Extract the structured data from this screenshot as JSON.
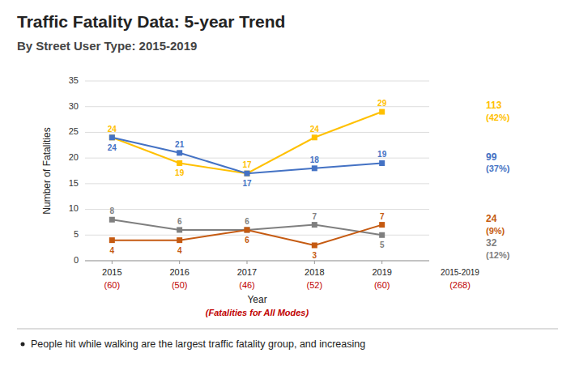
{
  "chart_data": {
    "type": "line",
    "title": "Traffic Fatality Data: 5-year Trend",
    "subtitle": "By Street User Type: 2015-2019",
    "x_label": "Year",
    "y_label": "Number of Fatalities",
    "x": [
      2015,
      2016,
      2017,
      2018,
      2019
    ],
    "xlim": [
      2014.6,
      2019.7
    ],
    "xticks": [
      2015,
      2016,
      2017,
      2018,
      2019
    ],
    "ylim": [
      0,
      35
    ],
    "yticks": [
      0,
      5,
      10,
      15,
      20,
      25,
      30,
      35
    ],
    "grid": true,
    "data_labels": true,
    "marker": "square",
    "series": [
      {
        "color": "#FFC000",
        "values": [
          24,
          19,
          17,
          24,
          29
        ]
      },
      {
        "color": "#4472C4",
        "values": [
          24,
          21,
          17,
          18,
          19
        ]
      },
      {
        "color": "#7F7F7F",
        "values": [
          8,
          6,
          6,
          7,
          5
        ]
      },
      {
        "color": "#C55A11",
        "values": [
          4,
          4,
          6,
          3,
          7
        ]
      }
    ],
    "annotations": [
      {
        "text": "(Fatalities for All Modes)",
        "color": "#C00000"
      },
      {
        "text": "(60)",
        "color": "#C00000"
      },
      {
        "text": "(50)",
        "color": "#C00000"
      },
      {
        "text": "(46)",
        "color": "#C00000"
      },
      {
        "text": "(52)",
        "color": "#C00000"
      },
      {
        "text": "(60)",
        "color": "#C00000"
      },
      {
        "text": "2015-2019"
      },
      {
        "text": "(268)",
        "color": "#C00000"
      },
      {
        "text": "113",
        "color": "#FFC000"
      },
      {
        "text": "(42%)",
        "color": "#FFC000"
      },
      {
        "text": "99",
        "color": "#4472C4"
      },
      {
        "text": "(37%)",
        "color": "#4472C4"
      },
      {
        "text": "24",
        "color": "#C55A11"
      },
      {
        "text": "(9%)",
        "color": "#C55A11"
      },
      {
        "text": "32",
        "color": "#7F7F7F"
      },
      {
        "text": "(12%)",
        "color": "#7F7F7F"
      },
      {
        "text": "People hit while walking are the largest traffic fatality group, and increasing"
      }
    ]
  }
}
